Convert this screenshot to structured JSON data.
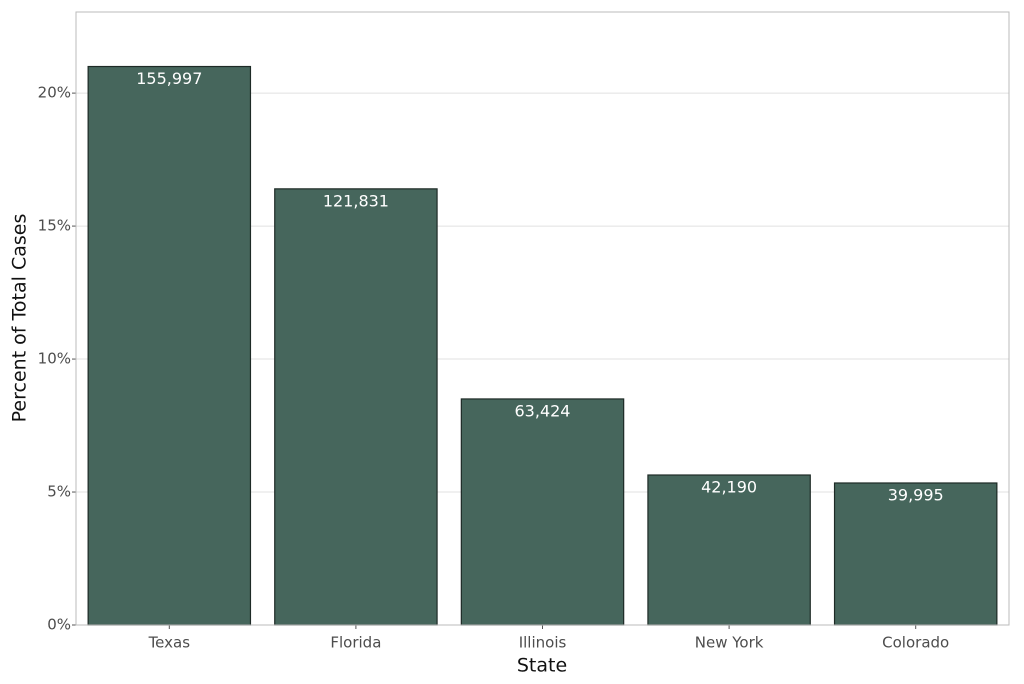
{
  "chart_data": {
    "type": "bar",
    "x_label": "State",
    "y_label": "Percent of Total Cases",
    "categories": [
      "Texas",
      "Florida",
      "Illinois",
      "New York",
      "Colorado"
    ],
    "values": [
      21.0,
      16.4,
      8.5,
      5.64,
      5.34
    ],
    "case_counts": [
      {
        "value": 155997,
        "label": "155,997"
      },
      {
        "value": 121831,
        "label": "121,831"
      },
      {
        "value": 63424,
        "label": "63,424"
      },
      {
        "value": 42190,
        "label": "42,190"
      },
      {
        "value": 39995,
        "label": "39,995"
      }
    ],
    "color": "#46665c",
    "edge_color": "#1e2a26",
    "ylim": [
      0,
      23.05
    ],
    "yticks": [
      {
        "value": 0,
        "label": "0%"
      },
      {
        "value": 5,
        "label": "5%"
      },
      {
        "value": 10,
        "label": "10%"
      },
      {
        "value": 15,
        "label": "15%"
      },
      {
        "value": 20,
        "label": "20%"
      }
    ],
    "grid": true
  }
}
